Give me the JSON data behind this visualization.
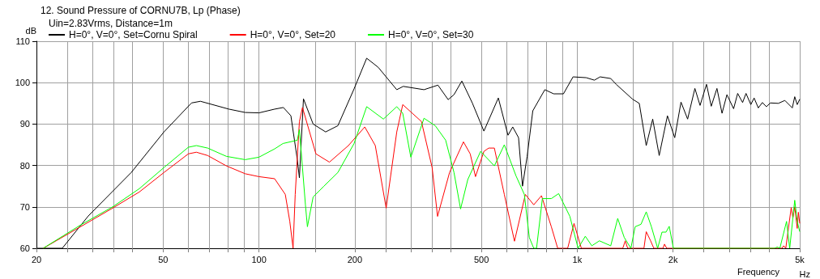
{
  "chart_data": {
    "type": "line",
    "title": "12. Sound Pressure of CORNU7B, Lp (Phase)",
    "subtitle": "Uin=2.83Vrms, Distance=1m",
    "xlabel": "Frequency",
    "ylabel": "dB",
    "annotations": [
      "Hz"
    ],
    "log": "x",
    "xlim": [
      20,
      5000
    ],
    "ylim": [
      60,
      110
    ],
    "xticks": [
      {
        "value": 20,
        "label": "20"
      },
      {
        "value": 25,
        "label": null
      },
      {
        "value": 30,
        "label": null
      },
      {
        "value": 35,
        "label": null
      },
      {
        "value": 40,
        "label": null
      },
      {
        "value": 50,
        "label": "50"
      },
      {
        "value": 60,
        "label": null
      },
      {
        "value": 70,
        "label": null
      },
      {
        "value": 80,
        "label": null
      },
      {
        "value": 90,
        "label": null
      },
      {
        "value": 100,
        "label": "100"
      },
      {
        "value": 150,
        "label": null
      },
      {
        "value": 200,
        "label": "200"
      },
      {
        "value": 250,
        "label": null
      },
      {
        "value": 300,
        "label": null
      },
      {
        "value": 350,
        "label": null
      },
      {
        "value": 400,
        "label": null
      },
      {
        "value": 500,
        "label": "500"
      },
      {
        "value": 600,
        "label": null
      },
      {
        "value": 700,
        "label": null
      },
      {
        "value": 800,
        "label": null
      },
      {
        "value": 900,
        "label": null
      },
      {
        "value": 1000,
        "label": "1k"
      },
      {
        "value": 1500,
        "label": null
      },
      {
        "value": 2000,
        "label": "2k"
      },
      {
        "value": 2500,
        "label": null
      },
      {
        "value": 3000,
        "label": null
      },
      {
        "value": 3500,
        "label": null
      },
      {
        "value": 4000,
        "label": null
      },
      {
        "value": 5000,
        "label": "5k"
      }
    ],
    "yticks": [
      60,
      70,
      80,
      90,
      100,
      110
    ],
    "grid": true,
    "legend": "top left",
    "marker": "none",
    "line_style": "solid",
    "series": [
      {
        "name": "H=0°, V=0°, Set=Cornu Spiral",
        "color": "#000000",
        "x": [
          20,
          24.1,
          29.1,
          39.7,
          50.3,
          61.4,
          65.5,
          80.5,
          90.5,
          100,
          112,
          119.3,
          126,
          132,
          134,
          138,
          148,
          162,
          177,
          199,
          218,
          237,
          271,
          284,
          330,
          365,
          393,
          410,
          434,
          468,
          509,
          565,
          606,
          627,
          654,
          673,
          696,
          725,
          791,
          843,
          905,
          970,
          1067,
          1132,
          1180,
          1274,
          1325,
          1492,
          1566,
          1647,
          1726,
          1809,
          1920,
          2024,
          2118,
          2222,
          2342,
          2431,
          2547,
          2636,
          2747,
          2850,
          2953,
          3099,
          3191,
          3307,
          3390,
          3510,
          3594,
          3705,
          3816,
          3928,
          4044,
          4282,
          4490,
          4738,
          4822,
          4910,
          5000
        ],
        "values": [
          60,
          60,
          67.8,
          78.3,
          88.1,
          95.1,
          95.5,
          93.6,
          92.8,
          92.7,
          93.6,
          94,
          92,
          81.4,
          77,
          96.1,
          90,
          88.1,
          89.6,
          98.5,
          105.9,
          103.7,
          98.3,
          99.1,
          98.3,
          99.4,
          95.9,
          97.1,
          100.4,
          95.1,
          88.3,
          96.3,
          87.3,
          89.3,
          86.7,
          75,
          82.2,
          93.2,
          98.3,
          97.3,
          97.3,
          101.4,
          101.2,
          100.6,
          101.4,
          101,
          99.6,
          96,
          95,
          84.8,
          91.2,
          82.4,
          92,
          86.7,
          95.3,
          91.2,
          98.6,
          94.5,
          99.6,
          94.3,
          98.6,
          92.6,
          97.1,
          93.7,
          97.4,
          95.2,
          97.4,
          94.7,
          96.3,
          93.9,
          95.2,
          94.2,
          95.1,
          95,
          95.7,
          93.9,
          96.6,
          94.7,
          96
        ]
      },
      {
        "name": "H=0°, V=0°, Set=20",
        "color": "#ff0000",
        "x": [
          21,
          27.5,
          34.7,
          42.1,
          50.3,
          60,
          63.6,
          69,
          79,
          90.5,
          100,
          112,
          121,
          125,
          128,
          130,
          134,
          137,
          151,
          166.5,
          191,
          215,
          232,
          251,
          271,
          283,
          324,
          350,
          364,
          397,
          439,
          461,
          479,
          509,
          527,
          549,
          590,
          635,
          687,
          730,
          772,
          829,
          868,
          933,
          977,
          1030,
          1390,
          1415,
          1440,
          1620,
          1647,
          1700,
          1740,
          1860,
          1880,
          1910,
          4400,
          4450,
          4520,
          4700,
          4760,
          4822,
          4910,
          4950,
          5000
        ],
        "values": [
          60,
          65.2,
          69.7,
          73.6,
          78.3,
          82.8,
          83.2,
          82.4,
          79.9,
          78,
          77.3,
          76.8,
          73,
          66.5,
          60,
          73,
          90.6,
          94,
          82.8,
          80.8,
          84.8,
          89.3,
          84.8,
          69.7,
          88.1,
          94.7,
          90.6,
          79.5,
          67.7,
          78.3,
          85.7,
          82.8,
          77.3,
          83.4,
          84.2,
          84.2,
          73,
          61.7,
          73,
          70.5,
          72.7,
          65.2,
          60,
          60,
          66,
          60,
          60,
          61.8,
          60,
          60,
          64,
          61.8,
          60,
          60,
          61,
          60,
          60,
          60.6,
          60,
          69.8,
          67.4,
          70,
          64.8,
          68.7,
          66
        ]
      },
      {
        "name": "H=0°, V=0°, Set=30",
        "color": "#00ff00",
        "x": [
          21,
          27.5,
          34.7,
          42.1,
          50.3,
          60,
          63.6,
          69,
          79,
          90.5,
          100,
          112,
          119,
          132,
          134,
          137,
          140,
          142,
          148,
          160,
          177,
          199,
          218,
          246,
          271,
          283,
          300,
          330,
          358,
          386,
          410,
          430,
          453,
          497,
          549,
          590,
          642,
          682,
          707,
          730,
          745,
          777,
          829,
          874,
          948,
          1006,
          1060,
          1111,
          1174,
          1274,
          1340,
          1405,
          1474,
          1520,
          1586,
          1647,
          1710,
          1789,
          1846,
          1900,
          1945,
          2005,
          4168,
          4250,
          4330,
          4545,
          4650,
          4822,
          4910,
          5000
        ],
        "values": [
          60,
          65.6,
          70,
          74.4,
          79.5,
          84.4,
          84.8,
          84.2,
          82.2,
          81.4,
          82,
          84,
          85.3,
          86.1,
          88.7,
          79.5,
          70.4,
          65.2,
          72.4,
          75,
          78.3,
          85.3,
          94.2,
          91.2,
          94.2,
          92.6,
          82,
          91.4,
          89.6,
          86.1,
          78.3,
          69.5,
          76.6,
          83.4,
          79.9,
          85,
          77.5,
          73,
          62.6,
          60,
          60,
          72,
          72,
          73.2,
          67.7,
          60,
          62.9,
          60.6,
          61.8,
          60.6,
          67.2,
          62.6,
          60,
          65.2,
          65.8,
          68.8,
          65.2,
          60,
          63.9,
          63.9,
          65.3,
          60,
          60,
          60.3,
          60,
          66.5,
          60,
          71.6,
          66.5,
          64
        ]
      }
    ]
  }
}
